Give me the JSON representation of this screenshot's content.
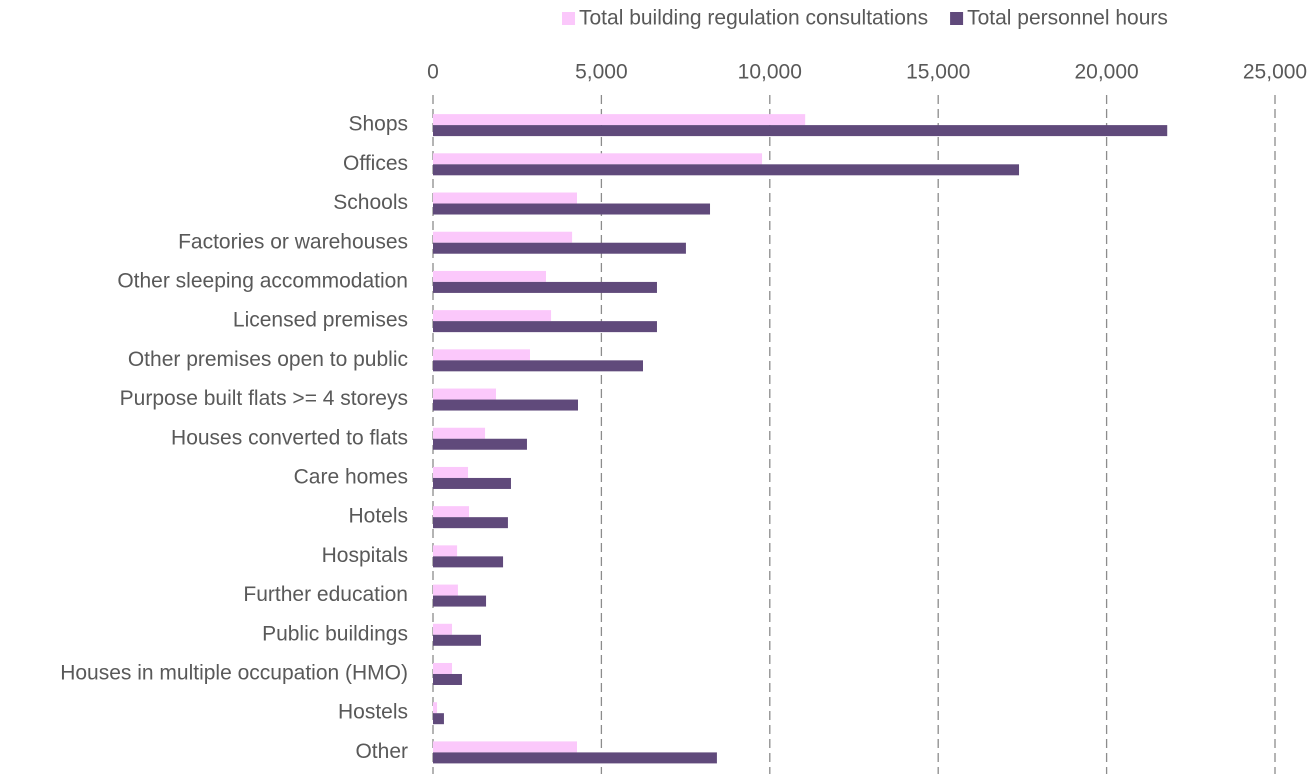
{
  "chart_data": {
    "type": "bar",
    "orientation": "horizontal",
    "categories": [
      "Shops",
      "Offices",
      "Schools",
      "Factories or warehouses",
      "Other sleeping accommodation",
      "Licensed premises",
      "Other premises open to public",
      "Purpose built flats >= 4 storeys",
      "Houses converted to flats",
      "Care homes",
      "Hotels",
      "Hospitals",
      "Further education",
      "Public buildings",
      "Houses in multiple occupation (HMO)",
      "Hostels",
      "Other"
    ],
    "series": [
      {
        "name": "Total building regulation consultations",
        "color": "#fbc8fb",
        "values": [
          11050,
          9770,
          4275,
          4130,
          3355,
          3505,
          2880,
          1870,
          1545,
          1040,
          1070,
          715,
          740,
          565,
          565,
          120,
          4275
        ]
      },
      {
        "name": "Total personnel hours",
        "color": "#604a7b",
        "values": [
          21800,
          17400,
          8225,
          7510,
          6650,
          6650,
          6235,
          4305,
          2790,
          2315,
          2225,
          2080,
          1575,
          1425,
          860,
          325,
          8430
        ]
      }
    ],
    "xlim": [
      0,
      25000
    ],
    "xticks": [
      0,
      {
        "value": 5000,
        "label": "5,000"
      },
      {
        "value": 10000,
        "label": "10,000"
      },
      {
        "value": 15000,
        "label": "15,000"
      },
      {
        "value": 20000,
        "label": "20,000"
      },
      {
        "value": 25000,
        "label": "25,000"
      }
    ],
    "grid": true,
    "legend": "top"
  }
}
